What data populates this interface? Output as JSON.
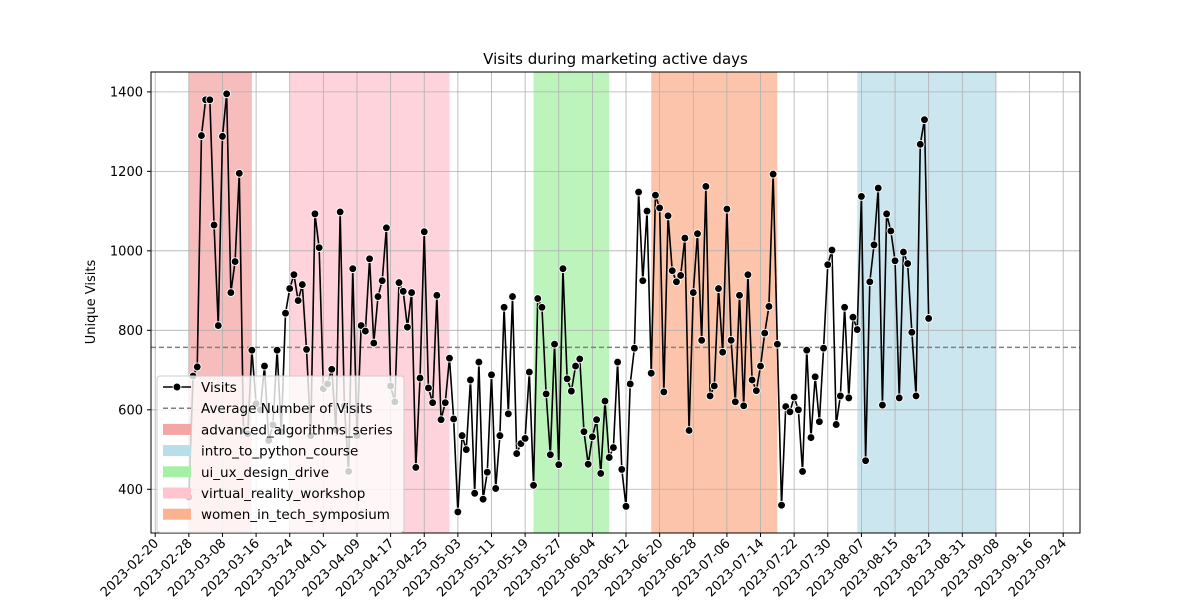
{
  "chart_data": {
    "type": "line",
    "title": "Visits during marketing active days",
    "xlabel": "",
    "ylabel": "Unique Visits",
    "ylim": [
      290,
      1450
    ],
    "xlim": [
      "2023-02-19",
      "2023-09-28"
    ],
    "grid": true,
    "legend_position": "lower-left",
    "x_ticks": [
      "2023-02-20",
      "2023-02-28",
      "2023-03-08",
      "2023-03-16",
      "2023-03-24",
      "2023-04-01",
      "2023-04-09",
      "2023-04-17",
      "2023-04-25",
      "2023-05-03",
      "2023-05-11",
      "2023-05-19",
      "2023-05-27",
      "2023-06-04",
      "2023-06-12",
      "2023-06-20",
      "2023-06-28",
      "2023-07-06",
      "2023-07-14",
      "2023-07-22",
      "2023-07-30",
      "2023-08-07",
      "2023-08-15",
      "2023-08-23",
      "2023-08-31",
      "2023-09-08",
      "2023-09-16",
      "2023-09-24"
    ],
    "y_ticks": [
      400,
      600,
      800,
      1000,
      1200,
      1400
    ],
    "series": [
      {
        "name": "Visits",
        "color": "#000000",
        "start_date": "2023-02-28",
        "values": [
          380,
          685,
          708,
          1290,
          1380,
          1380,
          1065,
          812,
          1288,
          1395,
          895,
          973,
          1195,
          547,
          540,
          750,
          615,
          600,
          710,
          523,
          562,
          750,
          545,
          843,
          905,
          940,
          875,
          915,
          752,
          535,
          1093,
          1008,
          653,
          665,
          702,
          550,
          1098,
          610,
          445,
          955,
          535,
          812,
          798,
          980,
          768,
          885,
          925,
          1058,
          660,
          620,
          920,
          898,
          808,
          895,
          455,
          680,
          1048,
          655,
          618,
          888,
          575,
          618,
          730,
          577,
          343,
          535,
          500,
          675,
          390,
          720,
          375,
          443,
          688,
          402,
          535,
          858,
          590,
          885,
          490,
          515,
          528,
          695,
          410,
          880,
          858,
          640,
          487,
          765,
          462,
          955,
          678,
          647,
          710,
          728,
          545,
          463,
          532,
          575,
          440,
          622,
          480,
          505,
          720,
          450,
          357,
          665,
          755,
          1148,
          925,
          1100,
          692,
          1140,
          1108,
          645,
          1088,
          950,
          922,
          938,
          1032,
          548,
          895,
          1043,
          775,
          1162,
          635,
          660,
          905,
          745,
          1105,
          775,
          620,
          888,
          610,
          940,
          675,
          648,
          710,
          793,
          860,
          1193,
          765,
          360,
          608,
          595,
          632,
          600,
          445,
          750,
          530,
          683,
          570,
          755,
          965,
          1002,
          563,
          635,
          858,
          630,
          833,
          802,
          1137,
          472,
          922,
          1015,
          1158,
          612,
          1093,
          1050,
          975,
          630,
          997,
          968,
          795,
          635,
          1268,
          1330,
          830
        ]
      },
      {
        "name": "Average Number of Visits",
        "color": "#808080",
        "value": 757
      }
    ],
    "campaigns": [
      {
        "name": "advanced_algorithms_series",
        "color": "#f4a6a6",
        "start": "2023-02-28",
        "end": "2023-03-15"
      },
      {
        "name": "intro_to_python_course",
        "color": "#b9deea",
        "start": "2023-08-06",
        "end": "2023-09-08"
      },
      {
        "name": "ui_ux_design_drive",
        "color": "#a6f0a6",
        "start": "2023-05-21",
        "end": "2023-06-08"
      },
      {
        "name": "virtual_reality_workshop",
        "color": "#ffc4cf",
        "start": "2023-03-24",
        "end": "2023-05-01"
      },
      {
        "name": "women_in_tech_symposium",
        "color": "#fbb28f",
        "start": "2023-06-18",
        "end": "2023-07-18"
      }
    ]
  }
}
